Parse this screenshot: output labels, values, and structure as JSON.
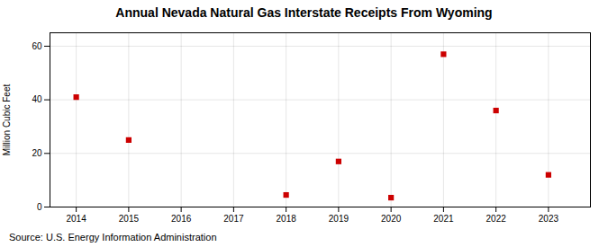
{
  "chart_data": {
    "type": "scatter",
    "title": "Annual Nevada Natural Gas Interstate Receipts From Wyoming",
    "ylabel": "Million Cubic Feet",
    "annotations": [
      "Source: U.S. Energy Information Administration"
    ],
    "x": [
      2014,
      2015,
      2018,
      2019,
      2020,
      2021,
      2022,
      2023
    ],
    "values": [
      41,
      25,
      4.5,
      17,
      3.5,
      57,
      36,
      12
    ],
    "xlim": [
      2013.5,
      2023.8
    ],
    "xticks": [
      2014,
      2015,
      2016,
      2017,
      2018,
      2019,
      2020,
      2021,
      2022,
      2023
    ],
    "ylim": [
      0,
      65
    ],
    "yticks": [
      0,
      20,
      40,
      60
    ],
    "grid": true,
    "color": "#CC0000",
    "marker": "square"
  }
}
